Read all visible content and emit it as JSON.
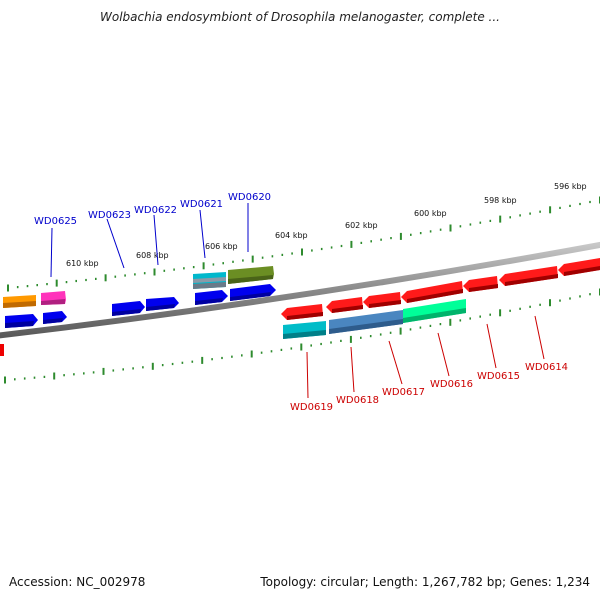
{
  "title": "Wolbachia endosymbiont of Drosophila melanogaster, complete ...",
  "footer": {
    "accession": "Accession: NC_002978",
    "summary": "Topology: circular; Length: 1,267,782 bp; Genes: 1,234"
  },
  "ruler": {
    "labels": [
      "610 kbp",
      "608 kbp",
      "606 kbp",
      "604 kbp",
      "602 kbp",
      "600 kbp",
      "598 kbp",
      "596 kbp"
    ]
  },
  "labeled_genes": {
    "forward_strand": [
      "WD0625",
      "WD0623",
      "WD0622",
      "WD0621",
      "WD0620"
    ],
    "reverse_strand": [
      "WD0619",
      "WD0618",
      "WD0617",
      "WD0616",
      "WD0615",
      "WD0614"
    ]
  },
  "colors": {
    "forward_label": "#0000cc",
    "reverse_label": "#cc0000",
    "backbone": "#888888",
    "tick": "#2e8b2e"
  }
}
